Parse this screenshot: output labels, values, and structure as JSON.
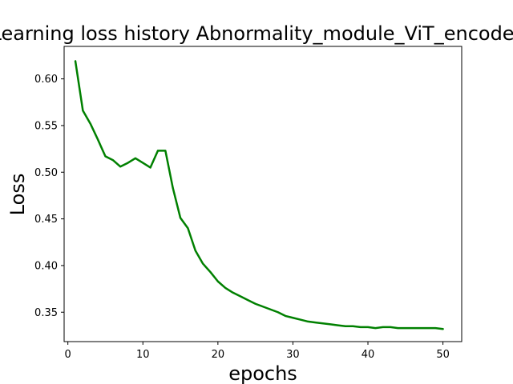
{
  "chart_data": {
    "type": "line",
    "title": "Learning loss history Abnormality_module_ViT_encoder",
    "xlabel": "epochs",
    "ylabel": "Loss",
    "xlim": [
      -0.5,
      52.5
    ],
    "ylim": [
      0.3185,
      0.6348
    ],
    "xticks": [
      0,
      10,
      20,
      30,
      40,
      50
    ],
    "yticks": [
      0.35,
      0.4,
      0.45,
      0.5,
      0.55,
      0.6
    ],
    "ytick_labels": [
      "0.35",
      "0.40",
      "0.45",
      "0.50",
      "0.55",
      "0.60"
    ],
    "grid": false,
    "series": [
      {
        "color": "#008000",
        "x": [
          1,
          2,
          3,
          4,
          5,
          6,
          7,
          8,
          9,
          10,
          11,
          12,
          13,
          14,
          15,
          16,
          17,
          18,
          19,
          20,
          21,
          22,
          23,
          24,
          25,
          26,
          27,
          28,
          29,
          30,
          31,
          32,
          33,
          34,
          35,
          36,
          37,
          38,
          39,
          40,
          41,
          42,
          43,
          44,
          45,
          46,
          47,
          48,
          49,
          50
        ],
        "values": [
          0.619,
          0.566,
          0.552,
          0.535,
          0.517,
          0.513,
          0.506,
          0.51,
          0.515,
          0.51,
          0.505,
          0.523,
          0.523,
          0.483,
          0.451,
          0.44,
          0.416,
          0.402,
          0.393,
          0.383,
          0.376,
          0.371,
          0.367,
          0.363,
          0.359,
          0.356,
          0.353,
          0.35,
          0.346,
          0.344,
          0.342,
          0.34,
          0.339,
          0.338,
          0.337,
          0.336,
          0.335,
          0.335,
          0.334,
          0.334,
          0.333,
          0.334,
          0.334,
          0.333,
          0.333,
          0.333,
          0.333,
          0.333,
          0.333,
          0.332
        ]
      }
    ]
  }
}
